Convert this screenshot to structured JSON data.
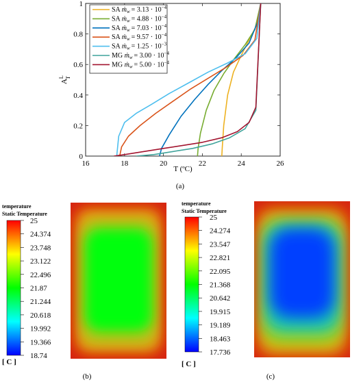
{
  "chart_data": [
    {
      "panel": "(a)",
      "type": "line",
      "xlabel": "T (ºC)",
      "ylabel": "A",
      "ylabel_sup": "L",
      "ylabel_sub": "T",
      "xlim": [
        16,
        26
      ],
      "ylim": [
        0,
        1
      ],
      "xticks": [
        "16",
        "18",
        "20",
        "22",
        "24",
        "26"
      ],
      "yticks": [
        "0",
        "0.2",
        "0.4",
        "0.6",
        "0.8",
        "1"
      ],
      "legend_position": "top-left",
      "series": [
        {
          "name": "SA ṁw = 3.13 · 10⁻⁴",
          "legend_plain": "SA",
          "legend_math": "ṁ",
          "legend_sub": "w",
          "legend_val": "= 3.13 · 10",
          "legend_exp": "−4",
          "color": "#EDB120",
          "x": [
            23.0,
            23.02,
            23.1,
            23.3,
            23.6,
            24.0,
            24.4,
            24.8,
            25.0
          ],
          "y": [
            0.0,
            0.05,
            0.2,
            0.4,
            0.55,
            0.66,
            0.76,
            0.86,
            1.0
          ]
        },
        {
          "name": "SA ṁw = 4.88 · 10⁻⁴",
          "legend_plain": "SA",
          "legend_math": "ṁ",
          "legend_sub": "w",
          "legend_val": "= 4.88 · 10",
          "legend_exp": "−4",
          "color": "#77AC30",
          "x": [
            21.75,
            21.78,
            21.9,
            22.2,
            22.6,
            23.1,
            23.6,
            24.2,
            24.7,
            25.0
          ],
          "y": [
            0.0,
            0.05,
            0.15,
            0.3,
            0.43,
            0.54,
            0.63,
            0.73,
            0.83,
            1.0
          ]
        },
        {
          "name": "SA ṁw = 7.03 · 10⁻⁴",
          "legend_plain": "SA",
          "legend_math": "ṁ",
          "legend_sub": "w",
          "legend_val": "= 7.03 · 10",
          "legend_exp": "−4",
          "color": "#0072BD",
          "x": [
            19.8,
            19.9,
            20.3,
            20.9,
            21.6,
            22.3,
            23.0,
            23.7,
            24.4,
            24.85,
            25.0
          ],
          "y": [
            0.0,
            0.05,
            0.14,
            0.26,
            0.37,
            0.47,
            0.56,
            0.64,
            0.74,
            0.88,
            1.0
          ]
        },
        {
          "name": "SA ṁw = 9.57 · 10⁻⁴",
          "legend_plain": "SA",
          "legend_math": "ṁ",
          "legend_sub": "w",
          "legend_val": "= 9.57 · 10",
          "legend_exp": "−4",
          "color": "#D95319",
          "x": [
            17.75,
            17.85,
            18.2,
            18.8,
            19.6,
            20.5,
            21.4,
            22.3,
            23.2,
            24.1,
            24.7,
            25.0
          ],
          "y": [
            0.0,
            0.06,
            0.13,
            0.2,
            0.28,
            0.36,
            0.44,
            0.51,
            0.58,
            0.66,
            0.76,
            1.0
          ]
        },
        {
          "name": "SA ṁw = 1.25 · 10⁻³",
          "legend_plain": "SA",
          "legend_math": "ṁ",
          "legend_sub": "w",
          "legend_val": "= 1.25 · 10",
          "legend_exp": "−3",
          "color": "#4DBEEE",
          "x": [
            17.6,
            17.7,
            18.0,
            18.6,
            19.4,
            20.3,
            21.3,
            22.3,
            23.3,
            24.2,
            24.8,
            25.0
          ],
          "y": [
            0.0,
            0.13,
            0.22,
            0.28,
            0.34,
            0.41,
            0.48,
            0.55,
            0.61,
            0.67,
            0.77,
            1.0
          ]
        },
        {
          "name": "MG ṁw = 3.00 · 10⁻⁴",
          "legend_plain": "MG",
          "legend_math": "ṁ",
          "legend_sub": "w",
          "legend_val": "= 3.00 · 10",
          "legend_exp": "−4",
          "color": "#3FA39B",
          "x": [
            18.6,
            19.5,
            20.5,
            21.5,
            22.5,
            23.4,
            24.2,
            24.75,
            25.0
          ],
          "y": [
            0.0,
            0.01,
            0.03,
            0.05,
            0.08,
            0.12,
            0.18,
            0.3,
            1.0
          ]
        },
        {
          "name": "MG ṁw = 5.00 · 10⁻⁴",
          "legend_plain": "MG",
          "legend_math": "ṁ",
          "legend_sub": "w",
          "legend_val": "= 5.00 · 10",
          "legend_exp": "−4",
          "color": "#A2142F",
          "x": [
            17.45,
            18.0,
            19.0,
            20.0,
            21.0,
            22.0,
            23.0,
            23.8,
            24.4,
            24.75,
            25.0
          ],
          "y": [
            0.0,
            0.01,
            0.03,
            0.05,
            0.07,
            0.09,
            0.12,
            0.16,
            0.22,
            0.32,
            1.0
          ]
        }
      ]
    },
    {
      "panel": "(b)",
      "type": "heatmap",
      "legend_title_1": "temperature",
      "legend_title_2": "Static Temperature",
      "unit": "[ C ]",
      "min": 18.74,
      "max": 25,
      "core_value": 21.8,
      "ticks": [
        "25",
        "24.374",
        "23.748",
        "23.122",
        "22.496",
        "21.87",
        "21.244",
        "20.618",
        "19.992",
        "19.366",
        "18.74"
      ]
    },
    {
      "panel": "(c)",
      "type": "heatmap",
      "legend_title_1": "temperature",
      "legend_title_2": "Static Temperature",
      "unit": "[ C ]",
      "min": 17.736,
      "max": 25,
      "core_value": 18.2,
      "ticks": [
        "25",
        "24.274",
        "23.547",
        "22.821",
        "22.095",
        "21.368",
        "20.642",
        "19.915",
        "19.189",
        "18.463",
        "17.736"
      ]
    }
  ]
}
